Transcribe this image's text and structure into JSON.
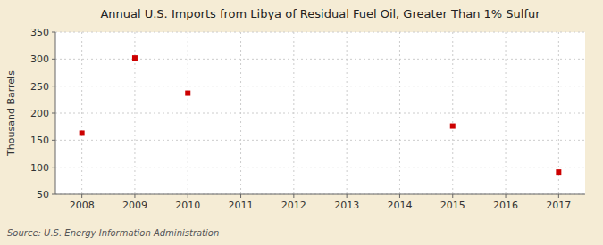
{
  "chart_data": {
    "type": "scatter",
    "title": "Annual U.S. Imports from Libya of Residual Fuel Oil, Greater Than 1% Sulfur",
    "ylabel": "Thousand Barrels",
    "source": "Source: U.S. Energy Information Administration",
    "x": [
      2008,
      2009,
      2010,
      2015,
      2017
    ],
    "values": [
      163,
      302,
      237,
      176,
      91
    ],
    "xlim": [
      2007.5,
      2017.5
    ],
    "ylim": [
      50,
      350
    ],
    "xticks": [
      2008,
      2009,
      2010,
      2011,
      2012,
      2013,
      2014,
      2015,
      2016,
      2017
    ],
    "yticks": [
      50,
      100,
      150,
      200,
      250,
      300,
      350
    ],
    "grid": true,
    "color": "#cc0000",
    "marker": "square"
  }
}
